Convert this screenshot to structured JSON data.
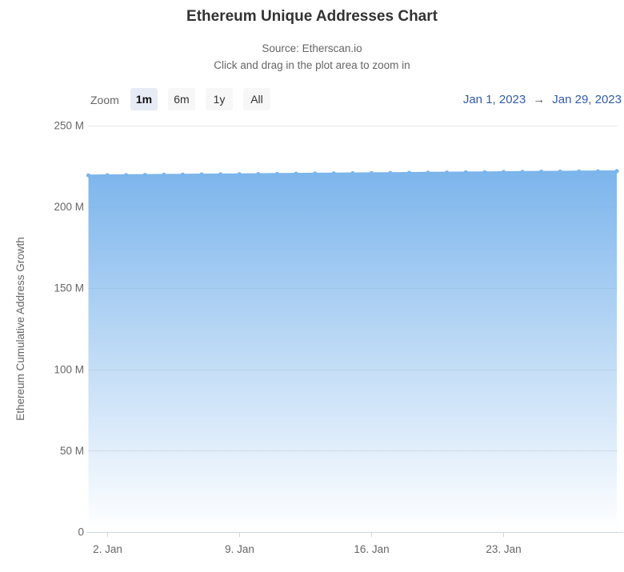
{
  "header": {
    "title": "Ethereum Unique Addresses Chart",
    "subtitle_source": "Source: Etherscan.io",
    "subtitle_hint": "Click and drag in the plot area to zoom in"
  },
  "range_selector": {
    "zoom_label": "Zoom",
    "buttons": [
      {
        "label": "1m",
        "selected": true
      },
      {
        "label": "6m",
        "selected": false
      },
      {
        "label": "1y",
        "selected": false
      },
      {
        "label": "All",
        "selected": false
      }
    ],
    "from_date": "Jan 1, 2023",
    "arrow": "→",
    "to_date": "Jan 29, 2023"
  },
  "colors": {
    "series": "#7cb5ec",
    "grid_line": "#e6e6e6",
    "axis_line": "#ccd6eb",
    "tick_label": "#666666",
    "title": "#333333",
    "subtitle": "#666666",
    "date_link": "#335cad",
    "button_selected_bg": "#e6ebf5",
    "button_bg": "#f7f7f7"
  },
  "chart_data": {
    "type": "area",
    "title": "Ethereum Unique Addresses Chart",
    "xlabel": "",
    "ylabel": "Ethereum Cumulative Address Growth",
    "x_range": [
      "Jan 1, 2023",
      "Jan 29, 2023"
    ],
    "ylim": [
      0,
      250
    ],
    "y_unit": "M",
    "grid": "horizontal",
    "legend": "none",
    "y_ticks": [
      {
        "value": 0,
        "label": "0"
      },
      {
        "value": 50,
        "label": "50 M"
      },
      {
        "value": 100,
        "label": "100 M"
      },
      {
        "value": 150,
        "label": "150 M"
      },
      {
        "value": 200,
        "label": "200 M"
      },
      {
        "value": 250,
        "label": "250 M"
      }
    ],
    "x_ticks": [
      {
        "day_index": 1,
        "label": "2. Jan"
      },
      {
        "day_index": 8,
        "label": "9. Jan"
      },
      {
        "day_index": 15,
        "label": "16. Jan"
      },
      {
        "day_index": 22,
        "label": "23. Jan"
      }
    ],
    "series": [
      {
        "name": "Ethereum Cumulative Address Growth",
        "unit": "M",
        "values": [
          219.4,
          219.49,
          219.59,
          219.68,
          219.77,
          219.86,
          219.96,
          220.05,
          220.14,
          220.24,
          220.33,
          220.42,
          220.52,
          220.61,
          220.7,
          220.79,
          220.89,
          220.98,
          221.07,
          221.17,
          221.26,
          221.35,
          221.44,
          221.54,
          221.63,
          221.72,
          221.82,
          221.91,
          222.0
        ]
      }
    ]
  }
}
